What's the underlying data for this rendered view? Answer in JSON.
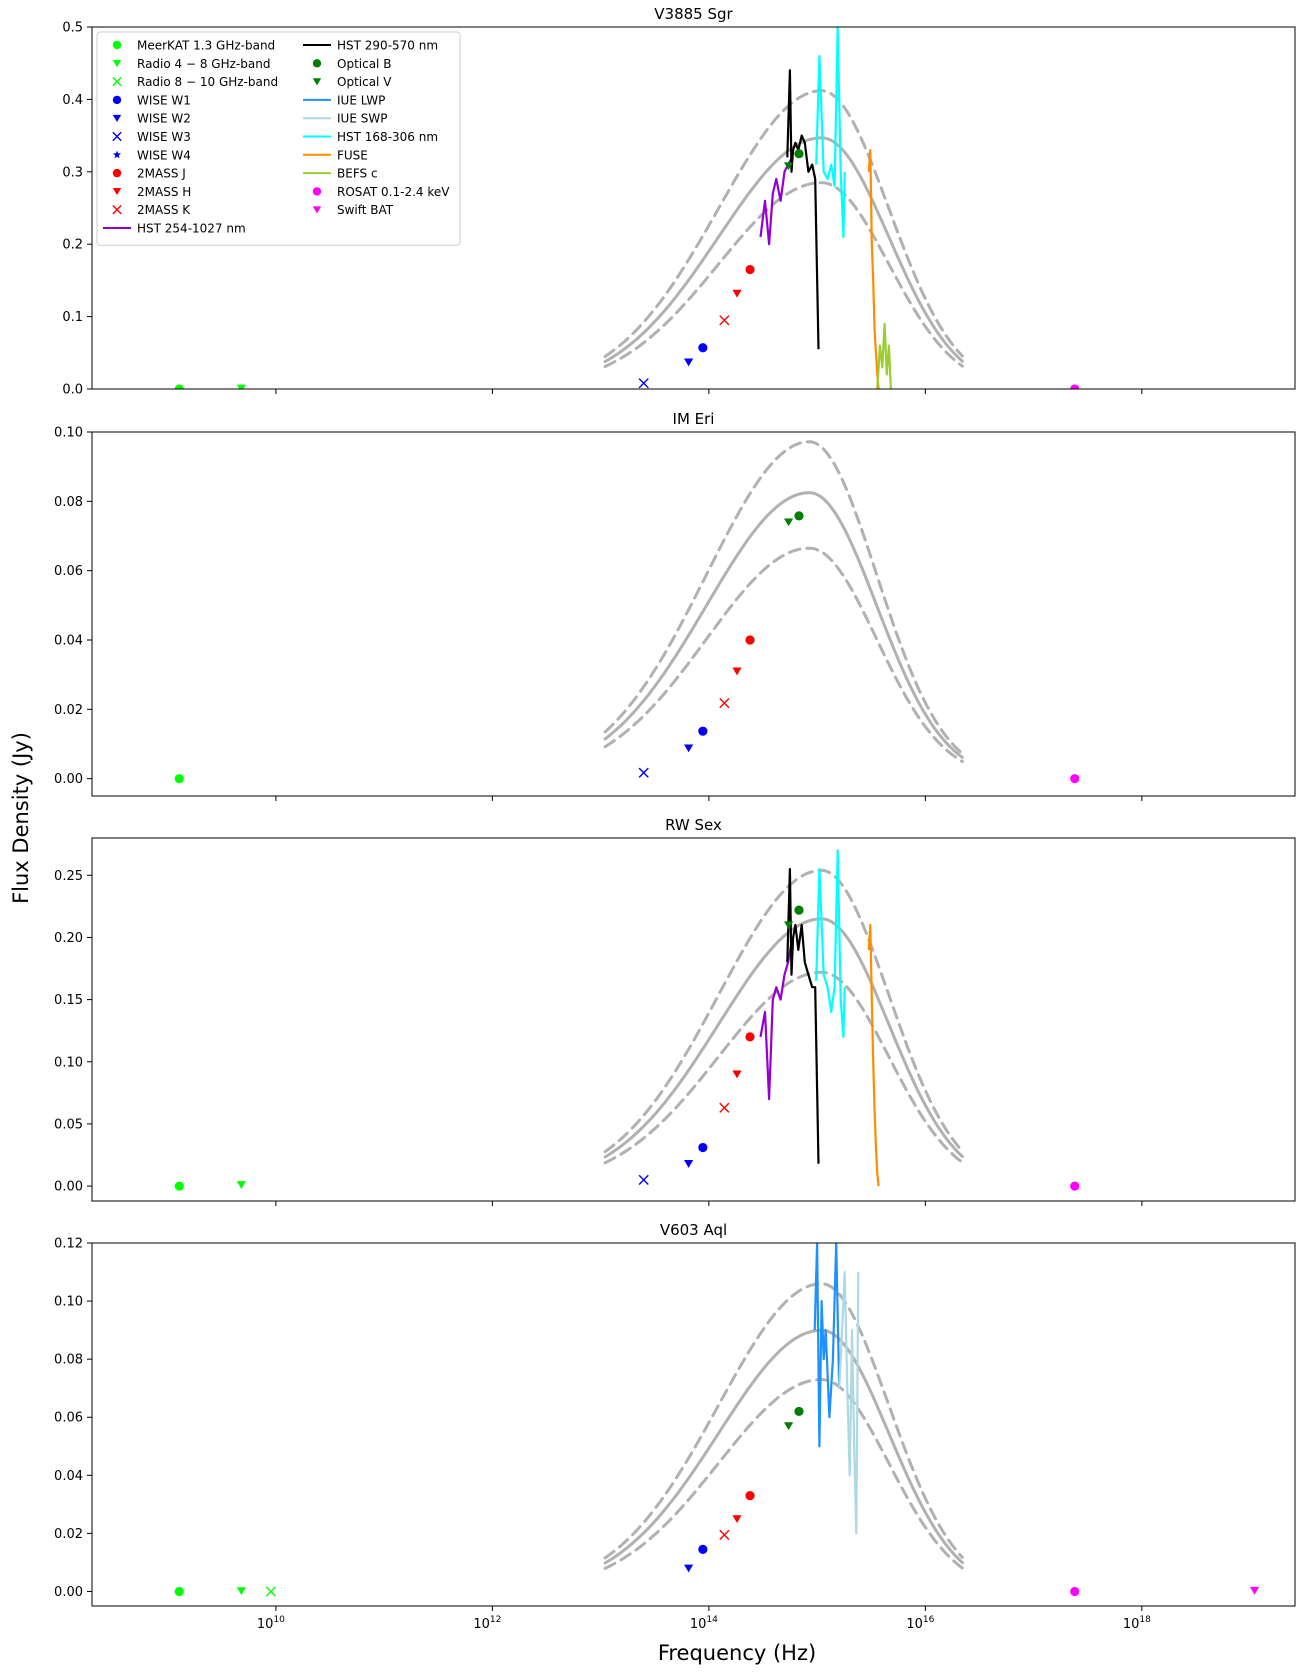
{
  "figure": {
    "ylabel": "Flux Density (Jy)",
    "xlabel": "Frequency (Hz)",
    "x_scale": "log",
    "xlim": [
      200000000.0,
      2.6e+19
    ],
    "x_ticks": [
      {
        "value": 10000000000.0,
        "base": "10",
        "exp": "10"
      },
      {
        "value": 1000000000000.0,
        "base": "10",
        "exp": "12"
      },
      {
        "value": 100000000000000.0,
        "base": "10",
        "exp": "14"
      },
      {
        "value": 1e+16,
        "base": "10",
        "exp": "16"
      },
      {
        "value": 1e+18,
        "base": "10",
        "exp": "18"
      }
    ]
  },
  "legend": {
    "placement": "top-left of first panel",
    "entries": [
      {
        "id": "meerkat",
        "label": "MeerKAT 1.3 GHz-band",
        "marker": "circle",
        "color": "#00ff00"
      },
      {
        "id": "radio48",
        "label": "Radio 4 − 8 GHz-band",
        "marker": "triangle-down",
        "color": "#00ff00"
      },
      {
        "id": "radio810",
        "label": "Radio 8 − 10 GHz-band",
        "marker": "x",
        "color": "#00ff00"
      },
      {
        "id": "w1",
        "label": "WISE W1",
        "marker": "circle",
        "color": "#0000ff"
      },
      {
        "id": "w2",
        "label": "WISE W2",
        "marker": "triangle-down",
        "color": "#0000ff"
      },
      {
        "id": "w3",
        "label": "WISE W3",
        "marker": "x",
        "color": "#0000ff"
      },
      {
        "id": "w4",
        "label": "WISE W4",
        "marker": "star",
        "color": "#0000ff"
      },
      {
        "id": "j",
        "label": "2MASS J",
        "marker": "circle",
        "color": "#ff0000"
      },
      {
        "id": "h",
        "label": "2MASS H",
        "marker": "triangle-down",
        "color": "#ff0000"
      },
      {
        "id": "k",
        "label": "2MASS K",
        "marker": "x",
        "color": "#ff0000"
      },
      {
        "id": "hst254",
        "label": "HST 254-1027 nm",
        "marker": "line",
        "color": "#9400d3"
      },
      {
        "id": "hst290",
        "label": "HST 290-570 nm",
        "marker": "line",
        "color": "#000000"
      },
      {
        "id": "optb",
        "label": "Optical B",
        "marker": "circle",
        "color": "#008000"
      },
      {
        "id": "optv",
        "label": "Optical V",
        "marker": "triangle-down",
        "color": "#008000"
      },
      {
        "id": "iuelwp",
        "label": "IUE LWP",
        "marker": "line",
        "color": "#1e90ff"
      },
      {
        "id": "iueswp",
        "label": "IUE SWP",
        "marker": "line",
        "color": "#add8e6"
      },
      {
        "id": "hst168",
        "label": "HST 168-306 nm",
        "marker": "line",
        "color": "#00ffff"
      },
      {
        "id": "fuse",
        "label": "FUSE",
        "marker": "line",
        "color": "#ff8c00"
      },
      {
        "id": "befs",
        "label": "BEFS c",
        "marker": "line",
        "color": "#9acd32"
      },
      {
        "id": "rosat",
        "label": "ROSAT 0.1-2.4 keV",
        "marker": "circle",
        "color": "#ff00ff"
      },
      {
        "id": "bat",
        "label": "Swift BAT",
        "marker": "triangle-down",
        "color": "#ff00ff"
      }
    ]
  },
  "model_color": "#a9a9a9",
  "chart_data": [
    {
      "type": "scatter",
      "title": "V3885 Sgr",
      "ylim": [
        0,
        0.5
      ],
      "y_ticks": [
        "0.0",
        "0.1",
        "0.2",
        "0.3",
        "0.4",
        "0.5"
      ],
      "model": {
        "peak_x": 1100000000000000.0,
        "peak_y": 0.347,
        "lower_y": 0.285,
        "upper_y": 0.412
      },
      "points": [
        {
          "series": "meerkat",
          "x": 1280000000.0,
          "y": 0.0
        },
        {
          "series": "radio48",
          "x": 4800000000.0,
          "y": 0.001
        },
        {
          "series": "w3",
          "x": 25000000000000.0,
          "y": 0.008
        },
        {
          "series": "w2",
          "x": 65000000000000.0,
          "y": 0.037
        },
        {
          "series": "w1",
          "x": 88000000000000.0,
          "y": 0.057
        },
        {
          "series": "k",
          "x": 139000000000000.0,
          "y": 0.095
        },
        {
          "series": "h",
          "x": 182000000000000.0,
          "y": 0.132
        },
        {
          "series": "j",
          "x": 240000000000000.0,
          "y": 0.165
        },
        {
          "series": "optv",
          "x": 545000000000000.0,
          "y": 0.308
        },
        {
          "series": "optb",
          "x": 680000000000000.0,
          "y": 0.325
        },
        {
          "series": "rosat",
          "x": 2.4e+17,
          "y": 0.0
        }
      ],
      "spectra": [
        {
          "series": "hst254",
          "x": [
            300000000000000.0,
            330000000000000.0,
            360000000000000.0,
            390000000000000.0,
            420000000000000.0,
            460000000000000.0,
            500000000000000.0,
            540000000000000.0,
            590000000000000.0
          ],
          "y": [
            0.21,
            0.26,
            0.2,
            0.27,
            0.29,
            0.26,
            0.3,
            0.31,
            0.32
          ]
        },
        {
          "series": "hst290",
          "x": [
            530000000000000.0,
            560000000000000.0,
            580000000000000.0,
            600000000000000.0,
            630000000000000.0,
            670000000000000.0,
            720000000000000.0,
            770000000000000.0,
            830000000000000.0,
            900000000000000.0,
            960000000000000.0,
            1030000000000000.0
          ],
          "y": [
            0.32,
            0.44,
            0.3,
            0.33,
            0.34,
            0.33,
            0.35,
            0.34,
            0.3,
            0.31,
            0.29,
            0.055
          ]
        },
        {
          "series": "hst168",
          "x": [
            980000000000000.0,
            1050000000000000.0,
            1150000000000000.0,
            1250000000000000.0,
            1350000000000000.0,
            1450000000000000.0,
            1550000000000000.0,
            1650000000000000.0,
            1750000000000000.0,
            1800000000000000.0
          ],
          "y": [
            0.31,
            0.46,
            0.3,
            0.29,
            0.31,
            0.28,
            0.5,
            0.3,
            0.21,
            0.3
          ]
        },
        {
          "series": "fuse",
          "x": [
            3000000000000000.0,
            3100000000000000.0,
            3200000000000000.0,
            3300000000000000.0,
            3400000000000000.0,
            3500000000000000.0,
            3600000000000000.0,
            3700000000000000.0
          ],
          "y": [
            0.3,
            0.33,
            0.2,
            0.15,
            0.08,
            0.05,
            0.02,
            0.0
          ]
        },
        {
          "series": "befs",
          "x": [
            3600000000000000.0,
            3800000000000000.0,
            4000000000000000.0,
            4200000000000000.0,
            4400000000000000.0,
            4600000000000000.0,
            4800000000000000.0
          ],
          "y": [
            0.0,
            0.06,
            0.03,
            0.09,
            0.02,
            0.06,
            0.0
          ]
        }
      ]
    },
    {
      "type": "scatter",
      "title": "IM Eri",
      "ylim": [
        -0.005,
        0.1
      ],
      "y_ticks": [
        "0.00",
        "0.02",
        "0.04",
        "0.06",
        "0.08",
        "0.10"
      ],
      "model": {
        "peak_x": 850000000000000.0,
        "peak_y": 0.0825,
        "lower_y": 0.0665,
        "upper_y": 0.0972
      },
      "points": [
        {
          "series": "meerkat",
          "x": 1280000000.0,
          "y": 0.0
        },
        {
          "series": "w3",
          "x": 25000000000000.0,
          "y": 0.0017
        },
        {
          "series": "w2",
          "x": 65000000000000.0,
          "y": 0.0088
        },
        {
          "series": "w1",
          "x": 88000000000000.0,
          "y": 0.0137
        },
        {
          "series": "k",
          "x": 139000000000000.0,
          "y": 0.0218
        },
        {
          "series": "h",
          "x": 182000000000000.0,
          "y": 0.031
        },
        {
          "series": "j",
          "x": 240000000000000.0,
          "y": 0.04
        },
        {
          "series": "optv",
          "x": 545000000000000.0,
          "y": 0.074
        },
        {
          "series": "optb",
          "x": 680000000000000.0,
          "y": 0.0758
        },
        {
          "series": "rosat",
          "x": 2.4e+17,
          "y": 0.0
        }
      ],
      "spectra": []
    },
    {
      "type": "scatter",
      "title": "RW Sex",
      "ylim": [
        -0.012,
        0.28
      ],
      "y_ticks": [
        "0.00",
        "0.05",
        "0.10",
        "0.15",
        "0.20",
        "0.25"
      ],
      "model": {
        "peak_x": 1100000000000000.0,
        "peak_y": 0.215,
        "lower_y": 0.172,
        "upper_y": 0.254
      },
      "points": [
        {
          "series": "meerkat",
          "x": 1280000000.0,
          "y": 0.0
        },
        {
          "series": "radio48",
          "x": 4800000000.0,
          "y": 0.001
        },
        {
          "series": "w3",
          "x": 25000000000000.0,
          "y": 0.005
        },
        {
          "series": "w2",
          "x": 65000000000000.0,
          "y": 0.018
        },
        {
          "series": "w1",
          "x": 88000000000000.0,
          "y": 0.031
        },
        {
          "series": "k",
          "x": 139000000000000.0,
          "y": 0.063
        },
        {
          "series": "h",
          "x": 182000000000000.0,
          "y": 0.09
        },
        {
          "series": "j",
          "x": 240000000000000.0,
          "y": 0.12
        },
        {
          "series": "optv",
          "x": 545000000000000.0,
          "y": 0.21
        },
        {
          "series": "optb",
          "x": 680000000000000.0,
          "y": 0.222
        },
        {
          "series": "rosat",
          "x": 2.4e+17,
          "y": 0.0
        }
      ],
      "spectra": [
        {
          "series": "hst254",
          "x": [
            300000000000000.0,
            330000000000000.0,
            360000000000000.0,
            390000000000000.0,
            420000000000000.0,
            460000000000000.0,
            500000000000000.0,
            540000000000000.0,
            590000000000000.0
          ],
          "y": [
            0.12,
            0.14,
            0.07,
            0.15,
            0.16,
            0.15,
            0.17,
            0.18,
            0.2
          ]
        },
        {
          "series": "hst290",
          "x": [
            530000000000000.0,
            560000000000000.0,
            580000000000000.0,
            600000000000000.0,
            630000000000000.0,
            670000000000000.0,
            720000000000000.0,
            770000000000000.0,
            830000000000000.0,
            900000000000000.0,
            960000000000000.0,
            1030000000000000.0
          ],
          "y": [
            0.18,
            0.255,
            0.17,
            0.2,
            0.21,
            0.19,
            0.21,
            0.18,
            0.17,
            0.16,
            0.16,
            0.018
          ]
        },
        {
          "series": "hst168",
          "x": [
            980000000000000.0,
            1050000000000000.0,
            1150000000000000.0,
            1250000000000000.0,
            1350000000000000.0,
            1450000000000000.0,
            1550000000000000.0,
            1650000000000000.0,
            1750000000000000.0,
            1800000000000000.0
          ],
          "y": [
            0.165,
            0.255,
            0.17,
            0.16,
            0.14,
            0.16,
            0.27,
            0.15,
            0.12,
            0.16
          ]
        },
        {
          "series": "fuse",
          "x": [
            3000000000000000.0,
            3100000000000000.0,
            3200000000000000.0,
            3300000000000000.0,
            3400000000000000.0,
            3500000000000000.0,
            3600000000000000.0,
            3700000000000000.0
          ],
          "y": [
            0.19,
            0.21,
            0.15,
            0.1,
            0.06,
            0.03,
            0.01,
            0.0
          ]
        }
      ]
    },
    {
      "type": "scatter",
      "title": "V603 Aql",
      "ylim": [
        -0.005,
        0.12
      ],
      "y_ticks": [
        "0.00",
        "0.02",
        "0.04",
        "0.06",
        "0.08",
        "0.10",
        "0.12"
      ],
      "model": {
        "peak_x": 1100000000000000.0,
        "peak_y": 0.09,
        "lower_y": 0.073,
        "upper_y": 0.106
      },
      "points": [
        {
          "series": "meerkat",
          "x": 1280000000.0,
          "y": 0.0
        },
        {
          "series": "radio48",
          "x": 4800000000.0,
          "y": 0.0002
        },
        {
          "series": "radio810",
          "x": 9000000000.0,
          "y": 0.0
        },
        {
          "series": "w2",
          "x": 65000000000000.0,
          "y": 0.008
        },
        {
          "series": "w1",
          "x": 88000000000000.0,
          "y": 0.0145
        },
        {
          "series": "k",
          "x": 139000000000000.0,
          "y": 0.0195
        },
        {
          "series": "h",
          "x": 182000000000000.0,
          "y": 0.025
        },
        {
          "series": "j",
          "x": 240000000000000.0,
          "y": 0.033
        },
        {
          "series": "optv",
          "x": 545000000000000.0,
          "y": 0.057
        },
        {
          "series": "optb",
          "x": 680000000000000.0,
          "y": 0.062
        },
        {
          "series": "rosat",
          "x": 2.4e+17,
          "y": 0.0
        },
        {
          "series": "bat",
          "x": 1.1e+19,
          "y": 0.0003
        }
      ],
      "spectra": [
        {
          "series": "iuelwp",
          "x": [
            950000000000000.0,
            1000000000000000.0,
            1050000000000000.0,
            1100000000000000.0,
            1150000000000000.0,
            1200000000000000.0,
            1300000000000000.0,
            1400000000000000.0,
            1500000000000000.0,
            1600000000000000.0
          ],
          "y": [
            0.09,
            0.12,
            0.05,
            0.1,
            0.08,
            0.09,
            0.06,
            0.08,
            0.12,
            0.07
          ]
        },
        {
          "series": "iueswp",
          "x": [
            1600000000000000.0,
            1700000000000000.0,
            1800000000000000.0,
            1900000000000000.0,
            2000000000000000.0,
            2100000000000000.0,
            2200000000000000.0,
            2300000000000000.0,
            2400000000000000.0
          ],
          "y": [
            0.07,
            0.09,
            0.11,
            0.07,
            0.04,
            0.09,
            0.05,
            0.02,
            0.11
          ]
        }
      ]
    }
  ]
}
